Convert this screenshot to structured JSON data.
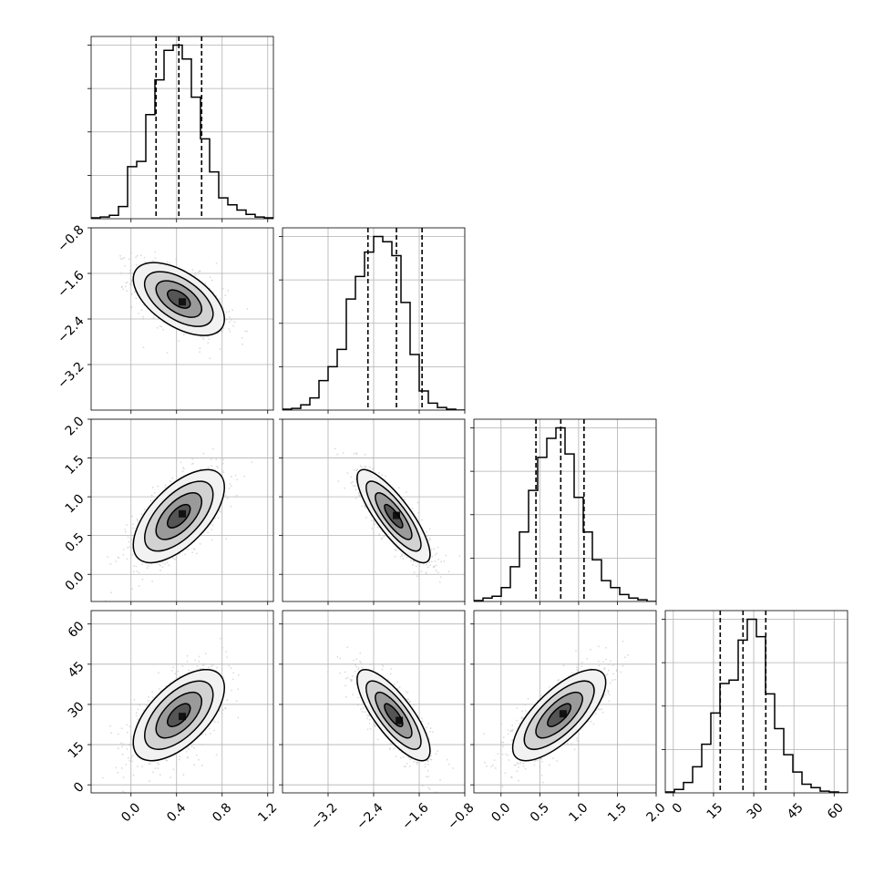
{
  "colors": {
    "ink": "#000000",
    "grid": "#b0b0b0",
    "scatter": "#bdbdbd"
  },
  "chart_data": {
    "type": "corner",
    "grid": true,
    "parameters": [
      {
        "xlim": [
          -0.35,
          1.25
        ],
        "hist_ylim": [
          0,
          1.05
        ],
        "ticks": [
          0.0,
          0.4,
          0.8,
          1.2
        ],
        "tick_labels": [
          "0.0",
          "0.4",
          "0.8",
          "1.2"
        ],
        "quantiles": [
          0.22,
          0.42,
          0.62
        ],
        "hist": [
          0.005,
          0.01,
          0.02,
          0.07,
          0.3,
          0.33,
          0.6,
          0.8,
          0.97,
          1.0,
          0.92,
          0.7,
          0.46,
          0.27,
          0.12,
          0.08,
          0.05,
          0.025,
          0.01,
          0.005
        ]
      },
      {
        "xlim": [
          -4.0,
          -0.8
        ],
        "hist_ylim": [
          0,
          1.05
        ],
        "ticks": [
          -3.2,
          -2.4,
          -1.6,
          -0.8
        ],
        "tick_labels": [
          "−3.2",
          "−2.4",
          "−1.6",
          "−0.8"
        ],
        "quantiles": [
          -2.5,
          -2.0,
          -1.55
        ],
        "hist": [
          0.005,
          0.01,
          0.03,
          0.07,
          0.17,
          0.25,
          0.35,
          0.64,
          0.77,
          0.91,
          1.0,
          0.97,
          0.89,
          0.62,
          0.32,
          0.11,
          0.04,
          0.015,
          0.005,
          0.0
        ]
      },
      {
        "xlim": [
          -0.35,
          2.0
        ],
        "hist_ylim": [
          0,
          1.05
        ],
        "ticks": [
          0.0,
          0.5,
          1.0,
          1.5,
          2.0
        ],
        "tick_labels": [
          "0.0",
          "0.5",
          "1.0",
          "1.5",
          "2.0"
        ],
        "quantiles": [
          0.45,
          0.77,
          1.07
        ],
        "hist": [
          0.005,
          0.02,
          0.03,
          0.08,
          0.2,
          0.4,
          0.64,
          0.83,
          0.94,
          1.0,
          0.85,
          0.6,
          0.4,
          0.24,
          0.12,
          0.08,
          0.04,
          0.02,
          0.01,
          0.0
        ]
      },
      {
        "xlim": [
          -3.0,
          65.0
        ],
        "hist_ylim": [
          0,
          1.05
        ],
        "ticks": [
          0,
          15,
          30,
          45,
          60
        ],
        "tick_labels": [
          "0",
          "15",
          "30",
          "45",
          "60"
        ],
        "quantiles": [
          17.5,
          26,
          34.5
        ],
        "hist": [
          0.005,
          0.02,
          0.06,
          0.15,
          0.28,
          0.46,
          0.63,
          0.65,
          0.88,
          1.0,
          0.9,
          0.57,
          0.37,
          0.22,
          0.12,
          0.05,
          0.03,
          0.01,
          0.005,
          0.0
        ]
      }
    ],
    "correlations": [
      {
        "row": 1,
        "col": 0,
        "mean": [
          0.42,
          -2.05
        ],
        "sd": [
          0.2,
          0.32
        ],
        "rho": -0.55,
        "peak": [
          0.45,
          -2.1
        ]
      },
      {
        "row": 2,
        "col": 0,
        "mean": [
          0.42,
          0.75
        ],
        "sd": [
          0.2,
          0.3
        ],
        "rho": 0.62,
        "peak": [
          0.45,
          0.78
        ]
      },
      {
        "row": 2,
        "col": 1,
        "mean": [
          -2.05,
          0.75
        ],
        "sd": [
          0.32,
          0.3
        ],
        "rho": -0.82,
        "peak": [
          -2.0,
          0.76
        ]
      },
      {
        "row": 3,
        "col": 0,
        "mean": [
          0.42,
          26
        ],
        "sd": [
          0.2,
          8.5
        ],
        "rho": 0.6,
        "peak": [
          0.45,
          25.5
        ]
      },
      {
        "row": 3,
        "col": 1,
        "mean": [
          -2.05,
          26
        ],
        "sd": [
          0.32,
          8.5
        ],
        "rho": -0.78,
        "peak": [
          -1.95,
          24.0
        ]
      },
      {
        "row": 3,
        "col": 2,
        "mean": [
          0.75,
          26
        ],
        "sd": [
          0.3,
          8.5
        ],
        "rho": 0.72,
        "peak": [
          0.8,
          26.5
        ]
      }
    ],
    "contour_levels_sigma": [
      0.5,
      1.0,
      1.5,
      2.0
    ]
  }
}
